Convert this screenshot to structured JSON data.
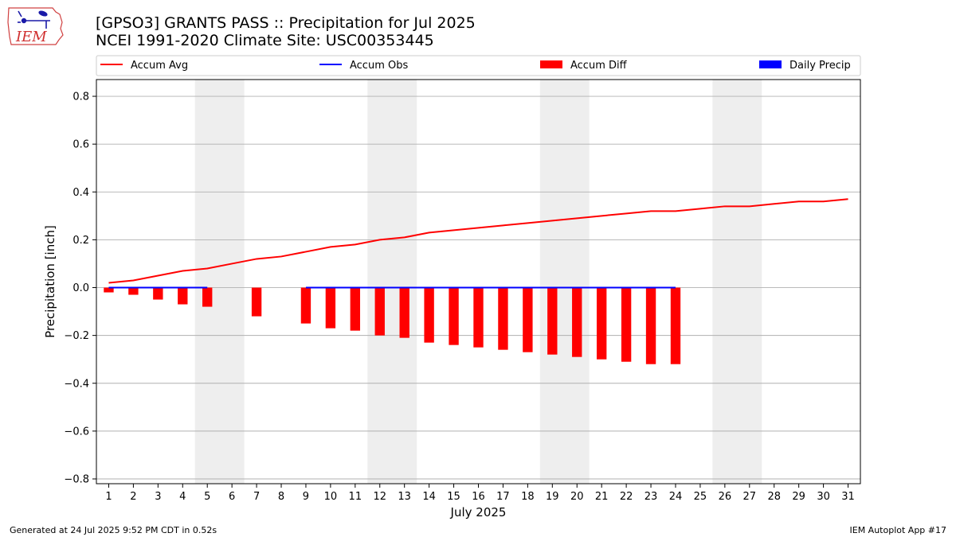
{
  "logo": {
    "text": "IEM"
  },
  "header": {
    "title": "[GPSO3] GRANTS PASS :: Precipitation for Jul 2025",
    "subtitle": "NCEI 1991-2020 Climate Site: USC00353445"
  },
  "footer": {
    "left": "Generated at 24 Jul 2025 9:52 PM CDT in 0.52s",
    "right": "IEM Autoplot App #17"
  },
  "chart_data": {
    "type": "bar",
    "xlabel": "July 2025",
    "ylabel": "Precipitation [inch]",
    "xlim": [
      0.5,
      31.5
    ],
    "ylim": [
      -0.82,
      0.87
    ],
    "yticks": [
      -0.8,
      -0.6,
      -0.4,
      -0.2,
      0.0,
      0.2,
      0.4,
      0.6,
      0.8
    ],
    "ytick_labels": [
      "−0.8",
      "−0.6",
      "−0.4",
      "−0.2",
      "0.0",
      "0.2",
      "0.4",
      "0.6",
      "0.8"
    ],
    "xticks": [
      1,
      2,
      3,
      4,
      5,
      6,
      7,
      8,
      9,
      10,
      11,
      12,
      13,
      14,
      15,
      16,
      17,
      18,
      19,
      20,
      21,
      22,
      23,
      24,
      25,
      26,
      27,
      28,
      29,
      30,
      31
    ],
    "grid": "horizontal",
    "legend_placement": "top",
    "weekend_shading": [
      [
        4.5,
        6.5
      ],
      [
        11.5,
        13.5
      ],
      [
        18.5,
        20.5
      ],
      [
        25.5,
        27.5
      ]
    ],
    "colors": {
      "accum_avg": "#ff0000",
      "accum_obs": "#0000ff",
      "accum_diff": "#ff0000",
      "daily_precip": "#0000ff",
      "shading": "#eeeeee",
      "grid": "#b0b0b0"
    },
    "legend": [
      "Accum Avg",
      "Accum Obs",
      "Accum Diff",
      "Daily Precip"
    ],
    "series": [
      {
        "name": "Accum Avg",
        "kind": "line",
        "x": [
          1,
          2,
          3,
          4,
          5,
          6,
          7,
          8,
          9,
          10,
          11,
          12,
          13,
          14,
          15,
          16,
          17,
          18,
          19,
          20,
          21,
          22,
          23,
          24,
          25,
          26,
          27,
          28,
          29,
          30,
          31
        ],
        "values": [
          0.02,
          0.03,
          0.05,
          0.07,
          0.08,
          0.1,
          0.12,
          0.13,
          0.15,
          0.17,
          0.18,
          0.2,
          0.21,
          0.23,
          0.24,
          0.25,
          0.26,
          0.27,
          0.28,
          0.29,
          0.3,
          0.31,
          0.32,
          0.32,
          0.33,
          0.34,
          0.34,
          0.35,
          0.36,
          0.36,
          0.37
        ]
      },
      {
        "name": "Accum Obs",
        "kind": "line",
        "segments": [
          {
            "x": [
              1,
              2,
              3,
              4,
              5
            ],
            "values": [
              0,
              0,
              0,
              0,
              0
            ]
          },
          {
            "x": [
              9,
              10,
              11,
              12,
              13,
              14,
              15,
              16,
              17,
              18,
              19,
              20,
              21,
              22,
              23,
              24
            ],
            "values": [
              0,
              0,
              0,
              0,
              0,
              0,
              0,
              0,
              0,
              0,
              0,
              0,
              0,
              0,
              0,
              0
            ]
          }
        ]
      },
      {
        "name": "Accum Diff",
        "kind": "bar",
        "x": [
          1,
          2,
          3,
          4,
          5,
          7,
          9,
          10,
          11,
          12,
          13,
          14,
          15,
          16,
          17,
          18,
          19,
          20,
          21,
          22,
          23,
          24
        ],
        "values": [
          -0.02,
          -0.03,
          -0.05,
          -0.07,
          -0.08,
          -0.12,
          -0.15,
          -0.17,
          -0.18,
          -0.2,
          -0.21,
          -0.23,
          -0.24,
          -0.25,
          -0.26,
          -0.27,
          -0.28,
          -0.29,
          -0.3,
          -0.31,
          -0.32,
          -0.32
        ]
      },
      {
        "name": "Daily Precip",
        "kind": "bar",
        "x": [
          1,
          2,
          3,
          4,
          5,
          9,
          10,
          11,
          12,
          13,
          14,
          15,
          16,
          17,
          18,
          19,
          20,
          21,
          22,
          23,
          24
        ],
        "values": [
          0,
          0,
          0,
          0,
          0,
          0,
          0,
          0,
          0,
          0,
          0,
          0,
          0,
          0,
          0,
          0,
          0,
          0,
          0,
          0,
          0
        ]
      }
    ]
  }
}
